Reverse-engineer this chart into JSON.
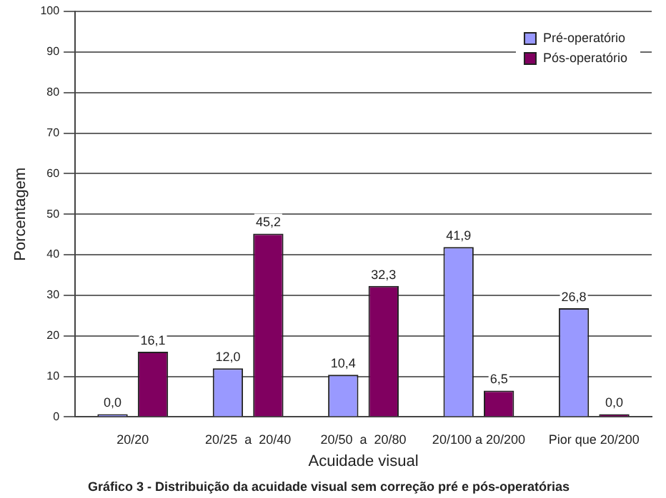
{
  "chart_data": {
    "type": "bar",
    "title": "Gráfico 3 - Distribuição da acuidade visual sem correção pré e pós-operatórias",
    "xlabel": "Acuidade visual",
    "ylabel": "Porcentagem",
    "categories": [
      "20/20",
      "20/25  a  20/40",
      "20/50  a  20/80",
      "20/100 a 20/200",
      "Pior que 20/200"
    ],
    "series": [
      {
        "name": "Pré-operatório",
        "color": "#9999ff",
        "values": [
          0.0,
          12.0,
          10.4,
          41.9,
          26.8
        ],
        "value_labels": [
          "0,0",
          "12,0",
          "10,4",
          "41,9",
          "26,8"
        ]
      },
      {
        "name": "Pós-operatório",
        "color": "#800060",
        "values": [
          16.1,
          45.2,
          32.3,
          6.5,
          0.0
        ],
        "value_labels": [
          "16,1",
          "45,2",
          "32,3",
          "6,5",
          "0,0"
        ]
      }
    ],
    "ylim": [
      0,
      100
    ],
    "yticks": [
      0,
      10,
      20,
      30,
      40,
      50,
      60,
      70,
      80,
      90,
      100
    ],
    "grid": "y",
    "legend": "top right"
  }
}
